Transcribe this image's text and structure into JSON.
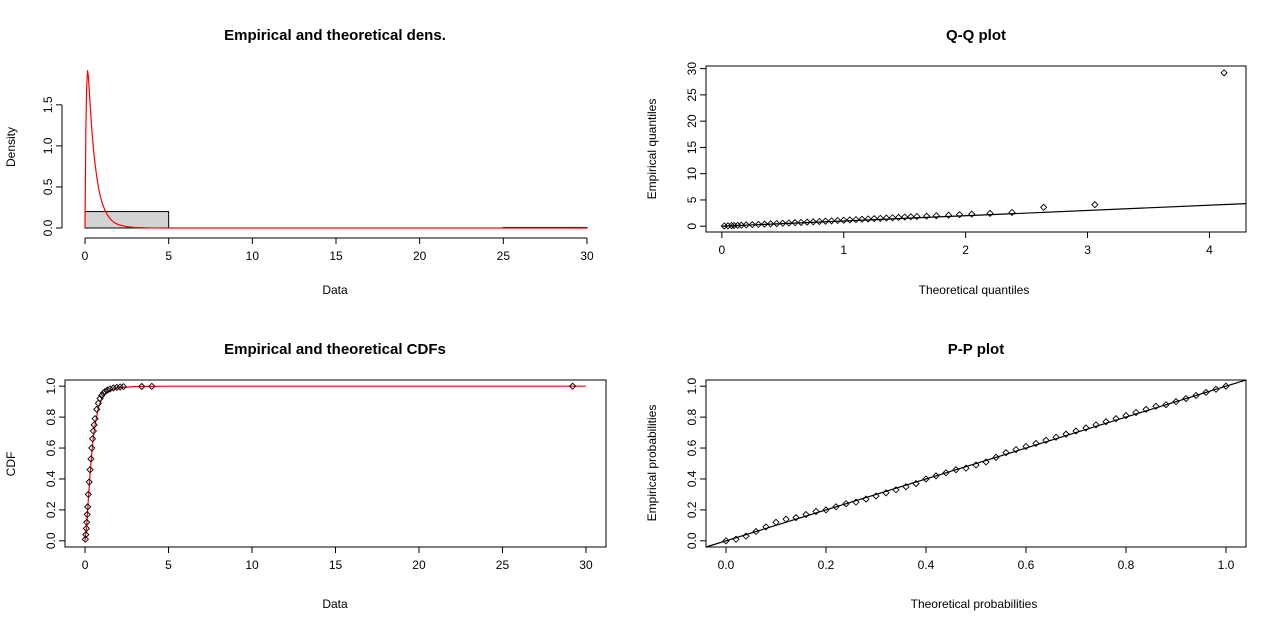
{
  "chart_data": [
    {
      "type": "histogram-density",
      "title": "Empirical and theoretical dens.",
      "xlabel": "Data",
      "ylabel": "Density",
      "xlim": [
        0,
        30
      ],
      "ylim": [
        0,
        1.9
      ],
      "xticks": [
        "0",
        "5",
        "10",
        "15",
        "20",
        "25",
        "30"
      ],
      "yticks": [
        "0.0",
        "0.5",
        "1.0",
        "1.5"
      ],
      "bars": [
        {
          "x0": 0,
          "x1": 5,
          "y": 0.2
        },
        {
          "x0": 5,
          "x1": 10,
          "y": 0.0
        },
        {
          "x0": 10,
          "x1": 15,
          "y": 0.0
        },
        {
          "x0": 15,
          "x1": 20,
          "y": 0.0
        },
        {
          "x0": 20,
          "x1": 25,
          "y": 0.0
        },
        {
          "x0": 25,
          "x1": 30,
          "y": 0.007
        }
      ],
      "density_curve": {
        "x": [
          0.0,
          0.05,
          0.1,
          0.15,
          0.2,
          0.25,
          0.3,
          0.4,
          0.5,
          0.6,
          0.7,
          0.8,
          0.9,
          1.0,
          1.2,
          1.4,
          1.6,
          1.8,
          2.0,
          2.5,
          3.0,
          4.0,
          5.0,
          10.0,
          20.0,
          30.0
        ],
        "y": [
          0.0,
          1.2,
          1.7,
          1.92,
          1.85,
          1.7,
          1.52,
          1.22,
          0.97,
          0.78,
          0.63,
          0.5,
          0.4,
          0.32,
          0.21,
          0.14,
          0.09,
          0.06,
          0.04,
          0.015,
          0.006,
          0.001,
          0.0,
          0.0,
          0.0,
          0.0
        ]
      },
      "curve_color": "#ff0000",
      "bar_fill": "#d3d3d3"
    },
    {
      "type": "scatter",
      "title": "Q-Q plot",
      "xlabel": "Theoretical quantiles",
      "ylabel": "Empirical quantiles",
      "xlim": [
        -0.13,
        4.3
      ],
      "ylim": [
        -1.1,
        30.5
      ],
      "xticks": [
        "0",
        "1",
        "2",
        "3",
        "4"
      ],
      "yticks": [
        "0",
        "5",
        "10",
        "15",
        "20",
        "25",
        "30"
      ],
      "points": {
        "x": [
          0.02,
          0.05,
          0.08,
          0.1,
          0.13,
          0.16,
          0.2,
          0.25,
          0.3,
          0.35,
          0.4,
          0.45,
          0.5,
          0.55,
          0.6,
          0.65,
          0.7,
          0.75,
          0.8,
          0.85,
          0.9,
          0.95,
          1.0,
          1.05,
          1.1,
          1.15,
          1.2,
          1.25,
          1.3,
          1.35,
          1.4,
          1.45,
          1.5,
          1.55,
          1.6,
          1.68,
          1.76,
          1.86,
          1.95,
          2.05,
          2.2,
          2.38,
          2.64,
          3.06,
          4.12
        ],
        "y": [
          0.05,
          0.08,
          0.12,
          0.14,
          0.17,
          0.2,
          0.25,
          0.3,
          0.35,
          0.4,
          0.45,
          0.5,
          0.56,
          0.62,
          0.68,
          0.72,
          0.78,
          0.84,
          0.9,
          0.96,
          1.02,
          1.08,
          1.14,
          1.2,
          1.26,
          1.32,
          1.38,
          1.44,
          1.5,
          1.56,
          1.62,
          1.68,
          1.74,
          1.8,
          1.86,
          1.92,
          2.0,
          2.1,
          2.2,
          2.3,
          2.45,
          2.62,
          3.6,
          4.1,
          29.2
        ]
      },
      "reference_line": {
        "x": [
          0,
          4.3
        ],
        "y": [
          0,
          4.3
        ]
      }
    },
    {
      "type": "step",
      "title": "Empirical and theoretical CDFs",
      "xlabel": "Data",
      "ylabel": "CDF",
      "xlim": [
        -1.2,
        31.2
      ],
      "ylim": [
        -0.04,
        1.04
      ],
      "xticks": [
        "0",
        "5",
        "10",
        "15",
        "20",
        "25",
        "30"
      ],
      "yticks": [
        "0.0",
        "0.2",
        "0.4",
        "0.6",
        "0.8",
        "1.0"
      ],
      "points": {
        "x": [
          0.02,
          0.05,
          0.08,
          0.1,
          0.13,
          0.16,
          0.2,
          0.25,
          0.3,
          0.35,
          0.4,
          0.45,
          0.5,
          0.55,
          0.6,
          0.7,
          0.8,
          0.9,
          1.0,
          1.1,
          1.2,
          1.35,
          1.5,
          1.7,
          1.9,
          2.1,
          2.3,
          3.4,
          4.0,
          29.2
        ],
        "y": [
          0.01,
          0.04,
          0.08,
          0.12,
          0.17,
          0.22,
          0.3,
          0.38,
          0.46,
          0.53,
          0.6,
          0.66,
          0.71,
          0.75,
          0.79,
          0.85,
          0.89,
          0.92,
          0.94,
          0.955,
          0.965,
          0.975,
          0.982,
          0.988,
          0.992,
          0.995,
          0.997,
          0.998,
          0.999,
          1.0
        ]
      },
      "cdf_curve": {
        "x": [
          0.0,
          0.1,
          0.2,
          0.3,
          0.4,
          0.5,
          0.6,
          0.8,
          1.0,
          1.2,
          1.5,
          2.0,
          3.0,
          5.0,
          30.0
        ],
        "y": [
          0.0,
          0.1,
          0.27,
          0.43,
          0.56,
          0.67,
          0.75,
          0.86,
          0.92,
          0.95,
          0.975,
          0.99,
          0.998,
          1.0,
          1.0
        ]
      },
      "curve_color": "#ff0000"
    },
    {
      "type": "scatter",
      "title": "P-P plot",
      "xlabel": "Theoretical probabilities",
      "ylabel": "Empirical probabilities",
      "xlim": [
        -0.04,
        1.04
      ],
      "ylim": [
        -0.04,
        1.04
      ],
      "xticks": [
        "0.0",
        "0.2",
        "0.4",
        "0.6",
        "0.8",
        "1.0"
      ],
      "yticks": [
        "0.0",
        "0.2",
        "0.4",
        "0.6",
        "0.8",
        "1.0"
      ],
      "points": {
        "x": [
          0.0,
          0.02,
          0.04,
          0.06,
          0.08,
          0.1,
          0.12,
          0.14,
          0.16,
          0.18,
          0.2,
          0.22,
          0.24,
          0.26,
          0.28,
          0.3,
          0.32,
          0.34,
          0.36,
          0.38,
          0.4,
          0.42,
          0.44,
          0.46,
          0.48,
          0.5,
          0.52,
          0.54,
          0.56,
          0.58,
          0.6,
          0.62,
          0.64,
          0.66,
          0.68,
          0.7,
          0.72,
          0.74,
          0.76,
          0.78,
          0.8,
          0.82,
          0.84,
          0.86,
          0.88,
          0.9,
          0.92,
          0.94,
          0.96,
          0.98,
          1.0
        ],
        "y": [
          0.0,
          0.01,
          0.03,
          0.06,
          0.09,
          0.12,
          0.14,
          0.15,
          0.17,
          0.19,
          0.2,
          0.22,
          0.24,
          0.25,
          0.27,
          0.29,
          0.31,
          0.33,
          0.35,
          0.37,
          0.4,
          0.42,
          0.44,
          0.46,
          0.47,
          0.49,
          0.51,
          0.54,
          0.57,
          0.59,
          0.61,
          0.63,
          0.65,
          0.67,
          0.69,
          0.71,
          0.73,
          0.75,
          0.77,
          0.79,
          0.81,
          0.83,
          0.85,
          0.87,
          0.88,
          0.9,
          0.92,
          0.94,
          0.96,
          0.98,
          1.0
        ]
      },
      "reference_line": {
        "x": [
          -0.04,
          1.04
        ],
        "y": [
          -0.04,
          1.04
        ]
      }
    }
  ]
}
